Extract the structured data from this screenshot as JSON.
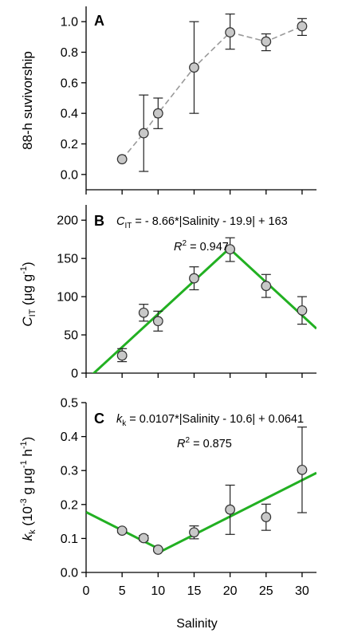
{
  "chart_data": [
    {
      "type": "line",
      "panel": "A",
      "xlabel": "",
      "ylabel": "88-h suvivorship",
      "xlim": [
        0,
        32
      ],
      "ylim": [
        -0.1,
        1.1
      ],
      "yticks": [
        0.0,
        0.2,
        0.4,
        0.6,
        0.8,
        1.0
      ],
      "ytick_labels": [
        "0.0",
        "0.2",
        "0.4",
        "0.6",
        "0.8",
        "1.0"
      ],
      "series": [
        {
          "points": [
            {
              "x": 5,
              "y": 0.1,
              "err_low": 0.1,
              "err_high": 0.1
            },
            {
              "x": 8,
              "y": 0.27,
              "err_low": 0.02,
              "err_high": 0.52
            },
            {
              "x": 10,
              "y": 0.4,
              "err_low": 0.3,
              "err_high": 0.5
            },
            {
              "x": 15,
              "y": 0.7,
              "err_low": 0.4,
              "err_high": 1.0
            },
            {
              "x": 20,
              "y": 0.93,
              "err_low": 0.82,
              "err_high": 1.05
            },
            {
              "x": 25,
              "y": 0.87,
              "err_low": 0.81,
              "err_high": 0.92
            },
            {
              "x": 30,
              "y": 0.97,
              "err_low": 0.91,
              "err_high": 1.02
            }
          ]
        }
      ]
    },
    {
      "type": "scatter",
      "panel": "B",
      "xlabel": "",
      "ylabel": "C_IT (μg g⁻¹)",
      "ylabel_parts": {
        "main": "C",
        "sub": "IT",
        "rest": " (μg g",
        "sup": "-1",
        "close": ")"
      },
      "xlim": [
        0,
        32
      ],
      "ylim": [
        0,
        220
      ],
      "yticks": [
        0,
        50,
        100,
        150,
        200
      ],
      "ytick_labels": [
        "0",
        "50",
        "100",
        "150",
        "200"
      ],
      "equation": {
        "lhs_main": "C",
        "lhs_sub": "IT",
        "rhs": " = - 8.66*|Salinity - 19.9| + 163"
      },
      "r2": {
        "label": "R",
        "sup": "2",
        "value": " = 0.947"
      },
      "fit": {
        "a": -8.66,
        "x0": 19.9,
        "b": 163
      },
      "series": [
        {
          "points": [
            {
              "x": 5,
              "y": 23,
              "err_low": 15,
              "err_high": 32
            },
            {
              "x": 8,
              "y": 79,
              "err_low": 68,
              "err_high": 90
            },
            {
              "x": 10,
              "y": 68,
              "err_low": 55,
              "err_high": 81
            },
            {
              "x": 15,
              "y": 124,
              "err_low": 109,
              "err_high": 139
            },
            {
              "x": 20,
              "y": 162,
              "err_low": 146,
              "err_high": 177
            },
            {
              "x": 25,
              "y": 114,
              "err_low": 99,
              "err_high": 129
            },
            {
              "x": 30,
              "y": 82,
              "err_low": 64,
              "err_high": 100
            }
          ]
        }
      ]
    },
    {
      "type": "scatter",
      "panel": "C",
      "xlabel": "Salinity",
      "ylabel": "k_k (10⁻³ g μg⁻¹ h⁻¹)",
      "ylabel_parts": {
        "main": "k",
        "sub": "k",
        "rest1": " (10",
        "sup1": "-3",
        "rest2": " g μg",
        "sup2": "-1",
        "rest3": " h",
        "sup3": "-1",
        "close": ")"
      },
      "xlim": [
        0,
        32
      ],
      "ylim": [
        0,
        0.5
      ],
      "xticks": [
        0,
        5,
        10,
        15,
        20,
        25,
        30
      ],
      "xtick_labels": [
        "0",
        "5",
        "10",
        "15",
        "20",
        "25",
        "30"
      ],
      "yticks": [
        0.0,
        0.1,
        0.2,
        0.3,
        0.4,
        0.5
      ],
      "ytick_labels": [
        "0.0",
        "0.1",
        "0.2",
        "0.3",
        "0.4",
        "0.5"
      ],
      "equation": {
        "lhs_main": "k",
        "lhs_sub": "k",
        "rhs": " = 0.0107*|Salinity - 10.6| + 0.0641"
      },
      "r2": {
        "label": "R",
        "sup": "2",
        "value": " = 0.875"
      },
      "fit": {
        "a": 0.0107,
        "x0": 10.6,
        "b": 0.0641
      },
      "series": [
        {
          "points": [
            {
              "x": 5,
              "y": 0.123,
              "err_low": 0.117,
              "err_high": 0.129
            },
            {
              "x": 8,
              "y": 0.101,
              "err_low": 0.093,
              "err_high": 0.109
            },
            {
              "x": 10,
              "y": 0.067,
              "err_low": 0.062,
              "err_high": 0.072
            },
            {
              "x": 15,
              "y": 0.118,
              "err_low": 0.099,
              "err_high": 0.137
            },
            {
              "x": 20,
              "y": 0.185,
              "err_low": 0.112,
              "err_high": 0.257
            },
            {
              "x": 25,
              "y": 0.163,
              "err_low": 0.124,
              "err_high": 0.201
            },
            {
              "x": 30,
              "y": 0.302,
              "err_low": 0.176,
              "err_high": 0.428
            }
          ]
        }
      ]
    }
  ],
  "colors": {
    "fit_line": "#22b022",
    "dashed_line": "#9a9a9a",
    "marker_fill": "#c8c8c8",
    "marker_stroke": "#333333",
    "axis": "#000000"
  }
}
